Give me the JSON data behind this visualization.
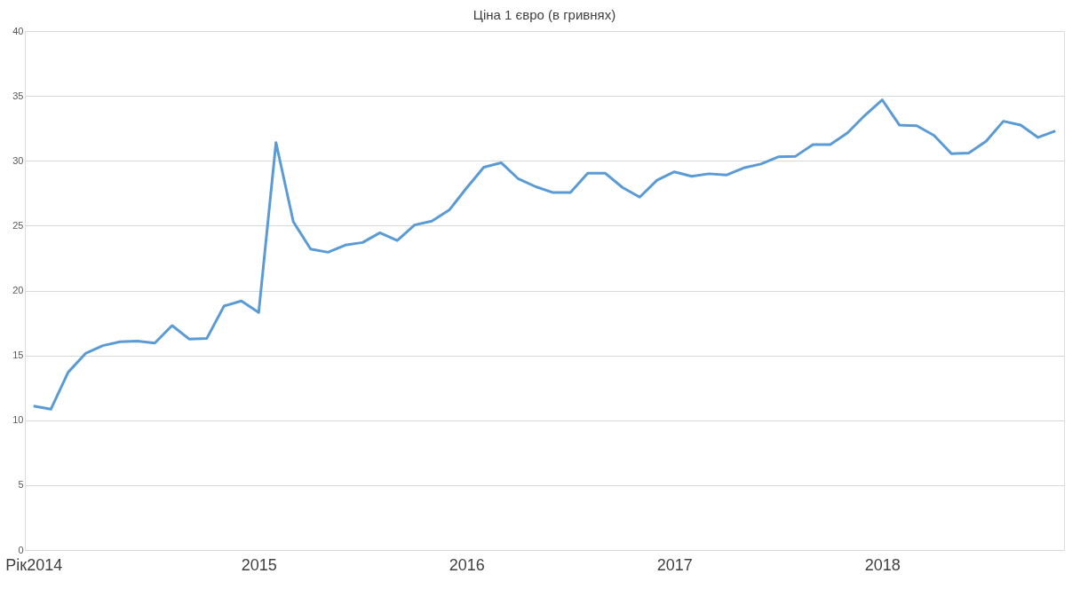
{
  "chart_data": {
    "type": "line",
    "title": "Ціна 1 євро (в гривнях)",
    "categories": [
      "Рік2014",
      null,
      null,
      null,
      null,
      null,
      null,
      null,
      null,
      null,
      null,
      null,
      null,
      "2015",
      null,
      null,
      null,
      null,
      null,
      null,
      null,
      null,
      null,
      null,
      null,
      "2016",
      null,
      null,
      null,
      null,
      null,
      null,
      null,
      null,
      null,
      null,
      null,
      "2017",
      null,
      null,
      null,
      null,
      null,
      null,
      null,
      null,
      null,
      null,
      null,
      "2018",
      null,
      null,
      null,
      null,
      null,
      null,
      null,
      null,
      null,
      null
    ],
    "series": [
      {
        "color": "#5b9bd5",
        "values": [
          11.1,
          10.85,
          13.7,
          15.15,
          15.75,
          16.05,
          16.1,
          15.95,
          17.3,
          16.25,
          16.3,
          18.8,
          19.2,
          18.3,
          31.4,
          25.3,
          23.2,
          22.95,
          23.5,
          23.7,
          24.45,
          23.85,
          25.05,
          25.35,
          26.2,
          27.9,
          29.5,
          29.85,
          28.6,
          28.0,
          27.55,
          27.55,
          29.05,
          29.05,
          27.95,
          27.2,
          28.5,
          29.15,
          28.8,
          29.0,
          28.9,
          29.45,
          29.75,
          30.3,
          30.35,
          31.25,
          31.25,
          32.15,
          33.5,
          34.7,
          32.75,
          32.7,
          31.95,
          30.55,
          30.6,
          31.5,
          33.05,
          32.75,
          31.8,
          32.3
        ]
      }
    ],
    "ylim": [
      0,
      40
    ],
    "yticks": [
      0,
      5,
      10,
      15,
      20,
      25,
      30,
      35,
      40
    ],
    "grid": "y",
    "legend": false,
    "marker": "none",
    "line_style": "solid"
  }
}
